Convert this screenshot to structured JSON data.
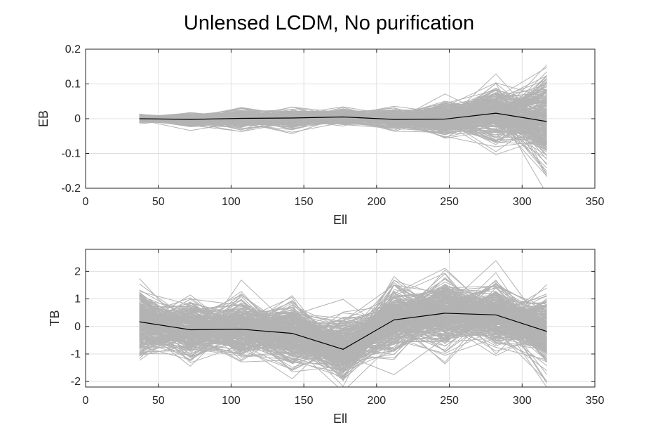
{
  "figure": {
    "title": "Unlensed LCDM, No purification"
  },
  "chart_data": [
    {
      "type": "line",
      "title": "",
      "xlabel": "Ell",
      "ylabel": "EB",
      "xlim": [
        0,
        350
      ],
      "ylim": [
        -0.2,
        0.2
      ],
      "xticks": [
        0,
        50,
        100,
        150,
        200,
        250,
        300,
        350
      ],
      "yticks": [
        -0.2,
        -0.1,
        0,
        0.1,
        0.2
      ],
      "xtick_labels": [
        "0",
        "50",
        "100",
        "150",
        "200",
        "250",
        "300",
        "350"
      ],
      "ytick_labels": [
        "-0.2",
        "-0.1",
        "0",
        "0.1",
        "0.2"
      ],
      "grid": true,
      "x": [
        37,
        72,
        107,
        142,
        177,
        212,
        247,
        282,
        317
      ],
      "mean": [
        0.0,
        -0.002,
        0.001,
        0.002,
        0.005,
        -0.002,
        -0.001,
        0.016,
        -0.008
      ],
      "spread": [
        0.005,
        0.008,
        0.013,
        0.012,
        0.01,
        0.012,
        0.022,
        0.038,
        0.06
      ],
      "n_realizations": 300,
      "colors": {
        "realizations": "#b3b3b3",
        "mean": "#000000"
      }
    },
    {
      "type": "line",
      "title": "",
      "xlabel": "Ell",
      "ylabel": "TB",
      "xlim": [
        0,
        350
      ],
      "ylim": [
        -2.2,
        2.8
      ],
      "xticks": [
        0,
        50,
        100,
        150,
        200,
        250,
        300,
        350
      ],
      "yticks": [
        -2,
        -1,
        0,
        1,
        2
      ],
      "xtick_labels": [
        "0",
        "50",
        "100",
        "150",
        "200",
        "250",
        "300",
        "350"
      ],
      "ytick_labels": [
        "-2",
        "-1",
        "0",
        "1",
        "2"
      ],
      "grid": true,
      "x": [
        37,
        72,
        107,
        142,
        177,
        212,
        247,
        282,
        317
      ],
      "mean": [
        0.17,
        -0.12,
        -0.1,
        -0.25,
        -0.83,
        0.24,
        0.48,
        0.42,
        -0.18
      ],
      "spread": [
        0.55,
        0.45,
        0.5,
        0.55,
        0.55,
        0.6,
        0.6,
        0.55,
        0.6
      ],
      "n_realizations": 300,
      "colors": {
        "realizations": "#b3b3b3",
        "mean": "#000000"
      }
    }
  ]
}
